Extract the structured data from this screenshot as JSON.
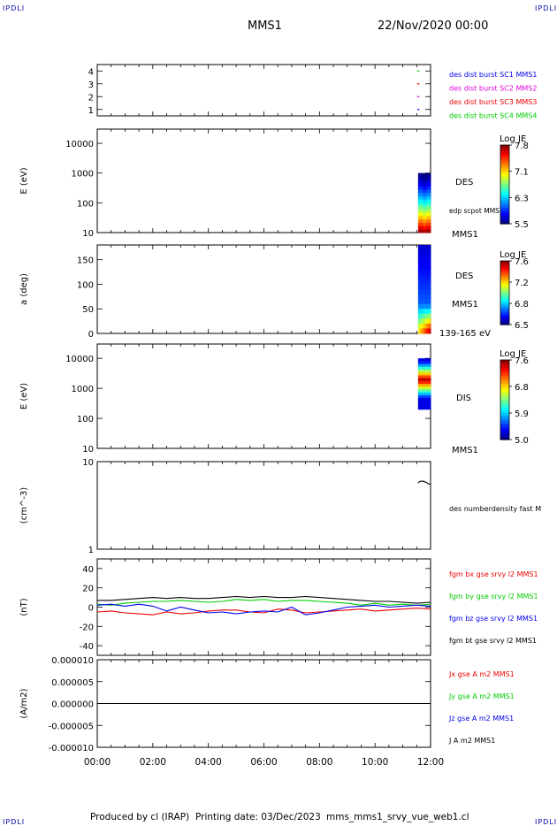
{
  "header": {
    "corner_left_top": "IPDLI",
    "corner_right_top": "IPDLI",
    "corner_left_bottom": "IPDLI",
    "corner_right_bottom": "IPDLI",
    "mission": "MMS1",
    "date": "22/Nov/2020 00:00"
  },
  "footer": {
    "produced_by": "Produced by cl (IRAP)",
    "printing_date": "Printing date: 03/Dec/2023",
    "filename": "mms_mms1_srvy_vue_web1.cl"
  },
  "x_axis": {
    "ticks": [
      "00:00",
      "02:00",
      "04:00",
      "06:00",
      "08:00",
      "10:00",
      "12:00"
    ],
    "range_hours": [
      0,
      12
    ]
  },
  "colors": {
    "blue": "#0000ee",
    "magenta": "#dd00dd",
    "red": "#ee0000",
    "green": "#00cc00",
    "black": "#000000",
    "frame": "#000000"
  },
  "chart_data": [
    {
      "type": "scatter",
      "ylim": [
        0.5,
        4.5
      ],
      "y_ticks": [
        "1",
        "2",
        "3",
        "4"
      ],
      "series": [
        {
          "name": "des dist burst SC1 MMS1",
          "color": "#0000ee",
          "x": [
            11.55
          ],
          "y": [
            1
          ]
        },
        {
          "name": "des dist burst SC2 MMS2",
          "color": "#dd00dd",
          "x": [
            11.55
          ],
          "y": [
            2
          ]
        },
        {
          "name": "des dist burst SC3 MMS3",
          "color": "#ee0000",
          "x": [
            11.55
          ],
          "y": [
            3
          ]
        },
        {
          "name": "des dist burst SC4 MMS4",
          "color": "#00cc00",
          "x": [
            11.55
          ],
          "y": [
            4
          ]
        }
      ]
    },
    {
      "type": "heatmap",
      "ylabel": "E (eV)",
      "log_y": true,
      "ylim": [
        10,
        30000
      ],
      "y_ticks": [
        "10",
        "100",
        "1000",
        "10000"
      ],
      "x_range": [
        11.55,
        12.0
      ],
      "y_range": [
        10,
        1000
      ],
      "labels": [
        "DES",
        "edp scpot MMS1",
        "MMS1"
      ],
      "colorbar": {
        "title": "Log JE",
        "ticks": [
          "7.8",
          "7.1",
          "6.3",
          "5.5"
        ]
      }
    },
    {
      "type": "heatmap",
      "ylabel": "a (deg)",
      "ylim": [
        0,
        180
      ],
      "y_ticks": [
        "0",
        "50",
        "100",
        "150"
      ],
      "x_range": [
        11.55,
        12.0
      ],
      "y_range": [
        0,
        180
      ],
      "labels": [
        "DES",
        "MMS1",
        "139-165 eV"
      ],
      "colorbar": {
        "title": "Log JE",
        "ticks": [
          "7.6",
          "7.2",
          "6.8",
          "6.5"
        ]
      }
    },
    {
      "type": "heatmap",
      "ylabel": "E (eV)",
      "log_y": true,
      "ylim": [
        10,
        30000
      ],
      "y_ticks": [
        "10",
        "100",
        "1000",
        "10000"
      ],
      "x_range": [
        11.55,
        12.0
      ],
      "y_range": [
        200,
        10000
      ],
      "labels": [
        "DIS",
        "MMS1"
      ],
      "colorbar": {
        "title": "Log JE",
        "ticks": [
          "7.6",
          "6.8",
          "5.9",
          "5.0"
        ]
      }
    },
    {
      "type": "line",
      "ylabel": "(cm^-3)",
      "log_y": true,
      "ylim": [
        1,
        10
      ],
      "y_ticks": [
        "1",
        "10"
      ],
      "series": [
        {
          "name": "des numberdensity fast M",
          "color": "#000000",
          "x": [
            11.55,
            11.6,
            11.65,
            11.7,
            11.75,
            11.8,
            11.85,
            11.9,
            11.95,
            12.0
          ],
          "y": [
            5.7,
            5.9,
            6.0,
            5.95,
            6.0,
            5.85,
            5.8,
            5.6,
            5.55,
            5.5
          ]
        }
      ]
    },
    {
      "type": "line",
      "ylabel": "(nT)",
      "ylim": [
        -50,
        50
      ],
      "y_ticks": [
        "-40",
        "-20",
        "0",
        "20",
        "40"
      ],
      "series": [
        {
          "name": "fgm bx gse srvy l2 MMS1",
          "color": "#ee0000",
          "x": [
            0,
            0.5,
            1,
            1.5,
            2,
            2.5,
            3,
            3.5,
            4,
            4.5,
            5,
            5.5,
            6,
            6.5,
            7,
            7.5,
            8,
            8.5,
            9,
            9.5,
            10,
            10.5,
            11,
            11.5,
            12
          ],
          "y": [
            -5,
            -4,
            -6,
            -7,
            -8,
            -5,
            -7,
            -6,
            -4,
            -3,
            -3,
            -5,
            -6,
            -2,
            -3,
            -6,
            -5,
            -4,
            -3,
            -2,
            -4,
            -3,
            -2,
            -1,
            -2
          ]
        },
        {
          "name": "fgm by gse srvy l2 MMS1",
          "color": "#00cc00",
          "x": [
            0,
            0.5,
            1,
            1.5,
            2,
            2.5,
            3,
            3.5,
            4,
            4.5,
            5,
            5.5,
            6,
            6.5,
            7,
            7.5,
            8,
            8.5,
            9,
            9.5,
            10,
            10.5,
            11,
            11.5,
            12
          ],
          "y": [
            3,
            2,
            4,
            5,
            6,
            6,
            7,
            6,
            5,
            6,
            8,
            7,
            8,
            6,
            7,
            7,
            6,
            5,
            4,
            2,
            4,
            2,
            3,
            2,
            3
          ]
        },
        {
          "name": "fgm bz gse srvy l2 MMS1",
          "color": "#0000ee",
          "x": [
            0,
            0.5,
            1,
            1.5,
            2,
            2.5,
            3,
            3.5,
            4,
            4.5,
            5,
            5.5,
            6,
            6.5,
            7,
            7.5,
            8,
            8.5,
            9,
            9.5,
            10,
            10.5,
            11,
            11.5,
            12
          ],
          "y": [
            2,
            3,
            1,
            3,
            1,
            -4,
            0,
            -3,
            -6,
            -5,
            -7,
            -5,
            -4,
            -5,
            0,
            -8,
            -6,
            -3,
            0,
            1,
            2,
            0,
            1,
            2,
            1
          ]
        },
        {
          "name": "fgm bt gse srvy l2 MMS1",
          "color": "#000000",
          "x": [
            0,
            0.5,
            1,
            1.5,
            2,
            2.5,
            3,
            3.5,
            4,
            4.5,
            5,
            5.5,
            6,
            6.5,
            7,
            7.5,
            8,
            8.5,
            9,
            9.5,
            10,
            10.5,
            11,
            11.5,
            12
          ],
          "y": [
            7,
            7,
            8,
            9,
            10,
            9,
            10,
            9,
            9,
            10,
            11,
            10,
            11,
            10,
            10,
            11,
            10,
            9,
            8,
            7,
            6,
            6,
            5,
            4,
            5
          ]
        }
      ]
    },
    {
      "type": "line",
      "ylabel": "(A/m2)",
      "ylim": [
        -1e-05,
        1e-05
      ],
      "y_ticks": [
        "-0.000010",
        "-0.000005",
        "0.000000",
        "0.000005",
        "0.000010"
      ],
      "series": [
        {
          "name": "Jx gse A m2 MMS1",
          "color": "#ee0000",
          "x": [
            0,
            12
          ],
          "y": [
            0,
            0
          ]
        },
        {
          "name": "Jy gse A m2 MMS1",
          "color": "#00cc00",
          "x": [
            0,
            12
          ],
          "y": [
            0,
            0
          ]
        },
        {
          "name": "Jz gse A m2 MMS1",
          "color": "#0000ee",
          "x": [
            0,
            12
          ],
          "y": [
            0,
            0
          ]
        },
        {
          "name": "J A m2 MMS1",
          "color": "#000000",
          "x": [
            0,
            12
          ],
          "y": [
            0,
            0
          ]
        }
      ]
    }
  ]
}
